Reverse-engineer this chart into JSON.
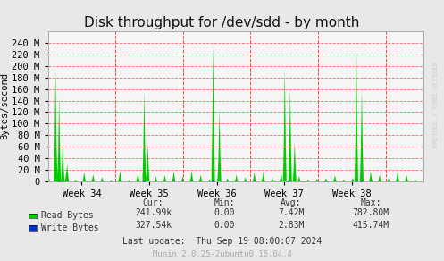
{
  "title": "Disk throughput for /dev/sdd - by month",
  "ylabel": "Bytes/second",
  "background_color": "#e8e8e8",
  "plot_bg_color": "#f5f5f5",
  "grid_color": "#ff6666",
  "week_labels": [
    "Week 34",
    "Week 35",
    "Week 36",
    "Week 37",
    "Week 38"
  ],
  "ylim_max": 260000000,
  "yticks": [
    0,
    20000000,
    40000000,
    60000000,
    80000000,
    100000000,
    120000000,
    140000000,
    160000000,
    180000000,
    200000000,
    220000000,
    240000000
  ],
  "ytick_labels": [
    "0",
    "20 M",
    "40 M",
    "60 M",
    "80 M",
    "100 M",
    "120 M",
    "140 M",
    "160 M",
    "180 M",
    "200 M",
    "220 M",
    "240 M"
  ],
  "read_color": "#00cc00",
  "write_color": "#0033cc",
  "vline_color": "#ff4444",
  "cur_read": "241.99k",
  "cur_write": "327.54k",
  "min_read": "0.00",
  "min_write": "0.00",
  "avg_read": "7.42M",
  "avg_write": "2.83M",
  "max_read": "782.80M",
  "max_write": "415.74M",
  "last_update": "Last update:  Thu Sep 19 08:00:07 2024",
  "munin_text": "Munin 2.0.25-2ubuntu0.16.04.4",
  "watermark": "RRDTOOL / TOBI OETIKER",
  "title_fontsize": 11,
  "axis_fontsize": 7.5,
  "footer_fontsize": 7,
  "week_separators": [
    0.18,
    0.36,
    0.54,
    0.72,
    0.9
  ],
  "read_spike_positions": [
    0.02,
    0.03,
    0.04,
    0.05,
    0.255,
    0.265,
    0.44,
    0.455,
    0.63,
    0.645,
    0.655,
    0.82,
    0.835
  ],
  "read_spike_heights": [
    195000000.0,
    145000000.0,
    70000000.0,
    30000000.0,
    155000000.0,
    65000000.0,
    237000000.0,
    125000000.0,
    197000000.0,
    160000000.0,
    70000000.0,
    228000000.0,
    160000000.0
  ],
  "write_spike_positions": [
    0.03,
    0.04,
    0.255,
    0.44,
    0.64,
    0.82,
    0.835
  ],
  "write_spike_heights": [
    65000000.0,
    30000000.0,
    60000000.0,
    130000000.0,
    70000000.0,
    65000000.0,
    60000000.0
  ]
}
